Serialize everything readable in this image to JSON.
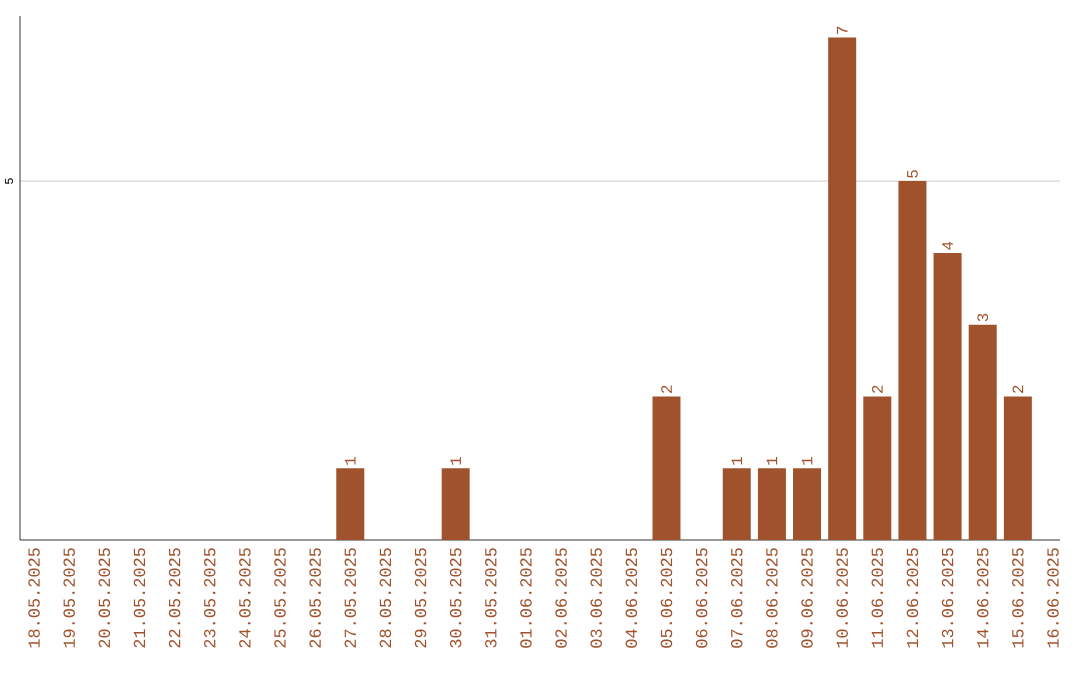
{
  "chart_data": {
    "type": "bar",
    "categories": [
      "18.05.2025",
      "19.05.2025",
      "20.05.2025",
      "21.05.2025",
      "22.05.2025",
      "23.05.2025",
      "24.05.2025",
      "25.05.2025",
      "26.05.2025",
      "27.05.2025",
      "28.05.2025",
      "29.05.2025",
      "30.05.2025",
      "31.05.2025",
      "01.06.2025",
      "02.06.2025",
      "03.06.2025",
      "04.06.2025",
      "05.06.2025",
      "06.06.2025",
      "07.06.2025",
      "08.06.2025",
      "09.06.2025",
      "10.06.2025",
      "11.06.2025",
      "12.06.2025",
      "13.06.2025",
      "14.06.2025",
      "15.06.2025",
      "16.06.2025"
    ],
    "values": [
      0,
      0,
      0,
      0,
      0,
      0,
      0,
      0,
      0,
      1,
      0,
      0,
      1,
      0,
      0,
      0,
      0,
      0,
      2,
      0,
      1,
      1,
      1,
      7,
      2,
      5,
      4,
      3,
      2,
      0
    ],
    "value_labels": [
      null,
      null,
      null,
      null,
      null,
      null,
      null,
      null,
      null,
      "1",
      null,
      null,
      "1",
      null,
      null,
      null,
      null,
      null,
      "2",
      null,
      "1",
      "1",
      "1",
      "7",
      "2",
      "5",
      "4",
      "3",
      "2",
      null
    ],
    "color": "#a0522d",
    "ylim": [
      0,
      7.3
    ],
    "yticks": [
      5
    ],
    "grid": "y"
  }
}
